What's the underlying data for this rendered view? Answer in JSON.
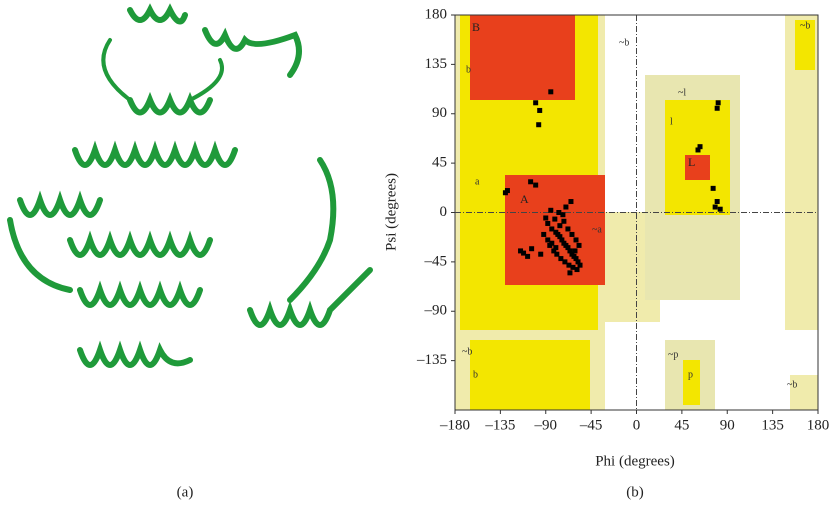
{
  "chart_data": {
    "type": "scatter",
    "xlabel": "Phi (degrees)",
    "ylabel": "Psi (degrees)",
    "panel_labels": [
      "(a)",
      "(b)"
    ],
    "region_labels": [
      "B",
      "A",
      "L",
      "a",
      "b",
      "l",
      "p",
      "b",
      "~b",
      "~a",
      "~l",
      "~p",
      "~b",
      "~b",
      "~b"
    ],
    "xlim": [
      -180,
      180
    ],
    "ylim": [
      -180,
      180
    ],
    "xticks": [
      {
        "value": -180,
        "label": "–180"
      },
      {
        "value": -135,
        "label": "–135"
      },
      {
        "value": -90,
        "label": "–90"
      },
      {
        "value": -45,
        "label": "–45"
      },
      0,
      45,
      90,
      135,
      180
    ],
    "yticks": [
      180,
      135,
      90,
      45,
      0,
      {
        "value": -45,
        "label": "–45"
      },
      {
        "value": -90,
        "label": "–90"
      },
      {
        "value": -135,
        "label": "–135"
      }
    ],
    "color": "#000000",
    "x": [
      -130,
      -128,
      -105,
      -100,
      -100,
      -96,
      -97,
      -85,
      -112,
      -115,
      -108,
      -104,
      -65,
      -90,
      -88,
      -84,
      -80,
      -78,
      -76,
      -74,
      -72,
      -70,
      -68,
      -66,
      -64,
      -62,
      -60,
      -58,
      -56,
      -86,
      -82,
      -79,
      -75,
      -71,
      -67,
      -63,
      -59,
      -92,
      -88,
      -84,
      -80,
      -76,
      -72,
      -68,
      -64,
      -60,
      -95,
      -70,
      -73,
      -77,
      -81,
      -85,
      -57,
      -61,
      -66,
      63,
      61,
      80,
      81,
      78,
      80,
      83,
      76
    ],
    "values": [
      18,
      20,
      28,
      25,
      100,
      93,
      80,
      110,
      -37,
      -35,
      -40,
      -33,
      10,
      -5,
      -10,
      -15,
      -18,
      -20,
      -22,
      -25,
      -28,
      -30,
      -32,
      -35,
      -38,
      -40,
      -42,
      -45,
      -48,
      -30,
      -35,
      -38,
      -42,
      -45,
      -48,
      -50,
      -52,
      -20,
      -25,
      -28,
      -32,
      -12,
      -8,
      -15,
      -20,
      -25,
      -38,
      5,
      -2,
      0,
      -6,
      2,
      -30,
      -35,
      -55,
      60,
      57,
      95,
      100,
      5,
      10,
      3,
      22
    ]
  }
}
